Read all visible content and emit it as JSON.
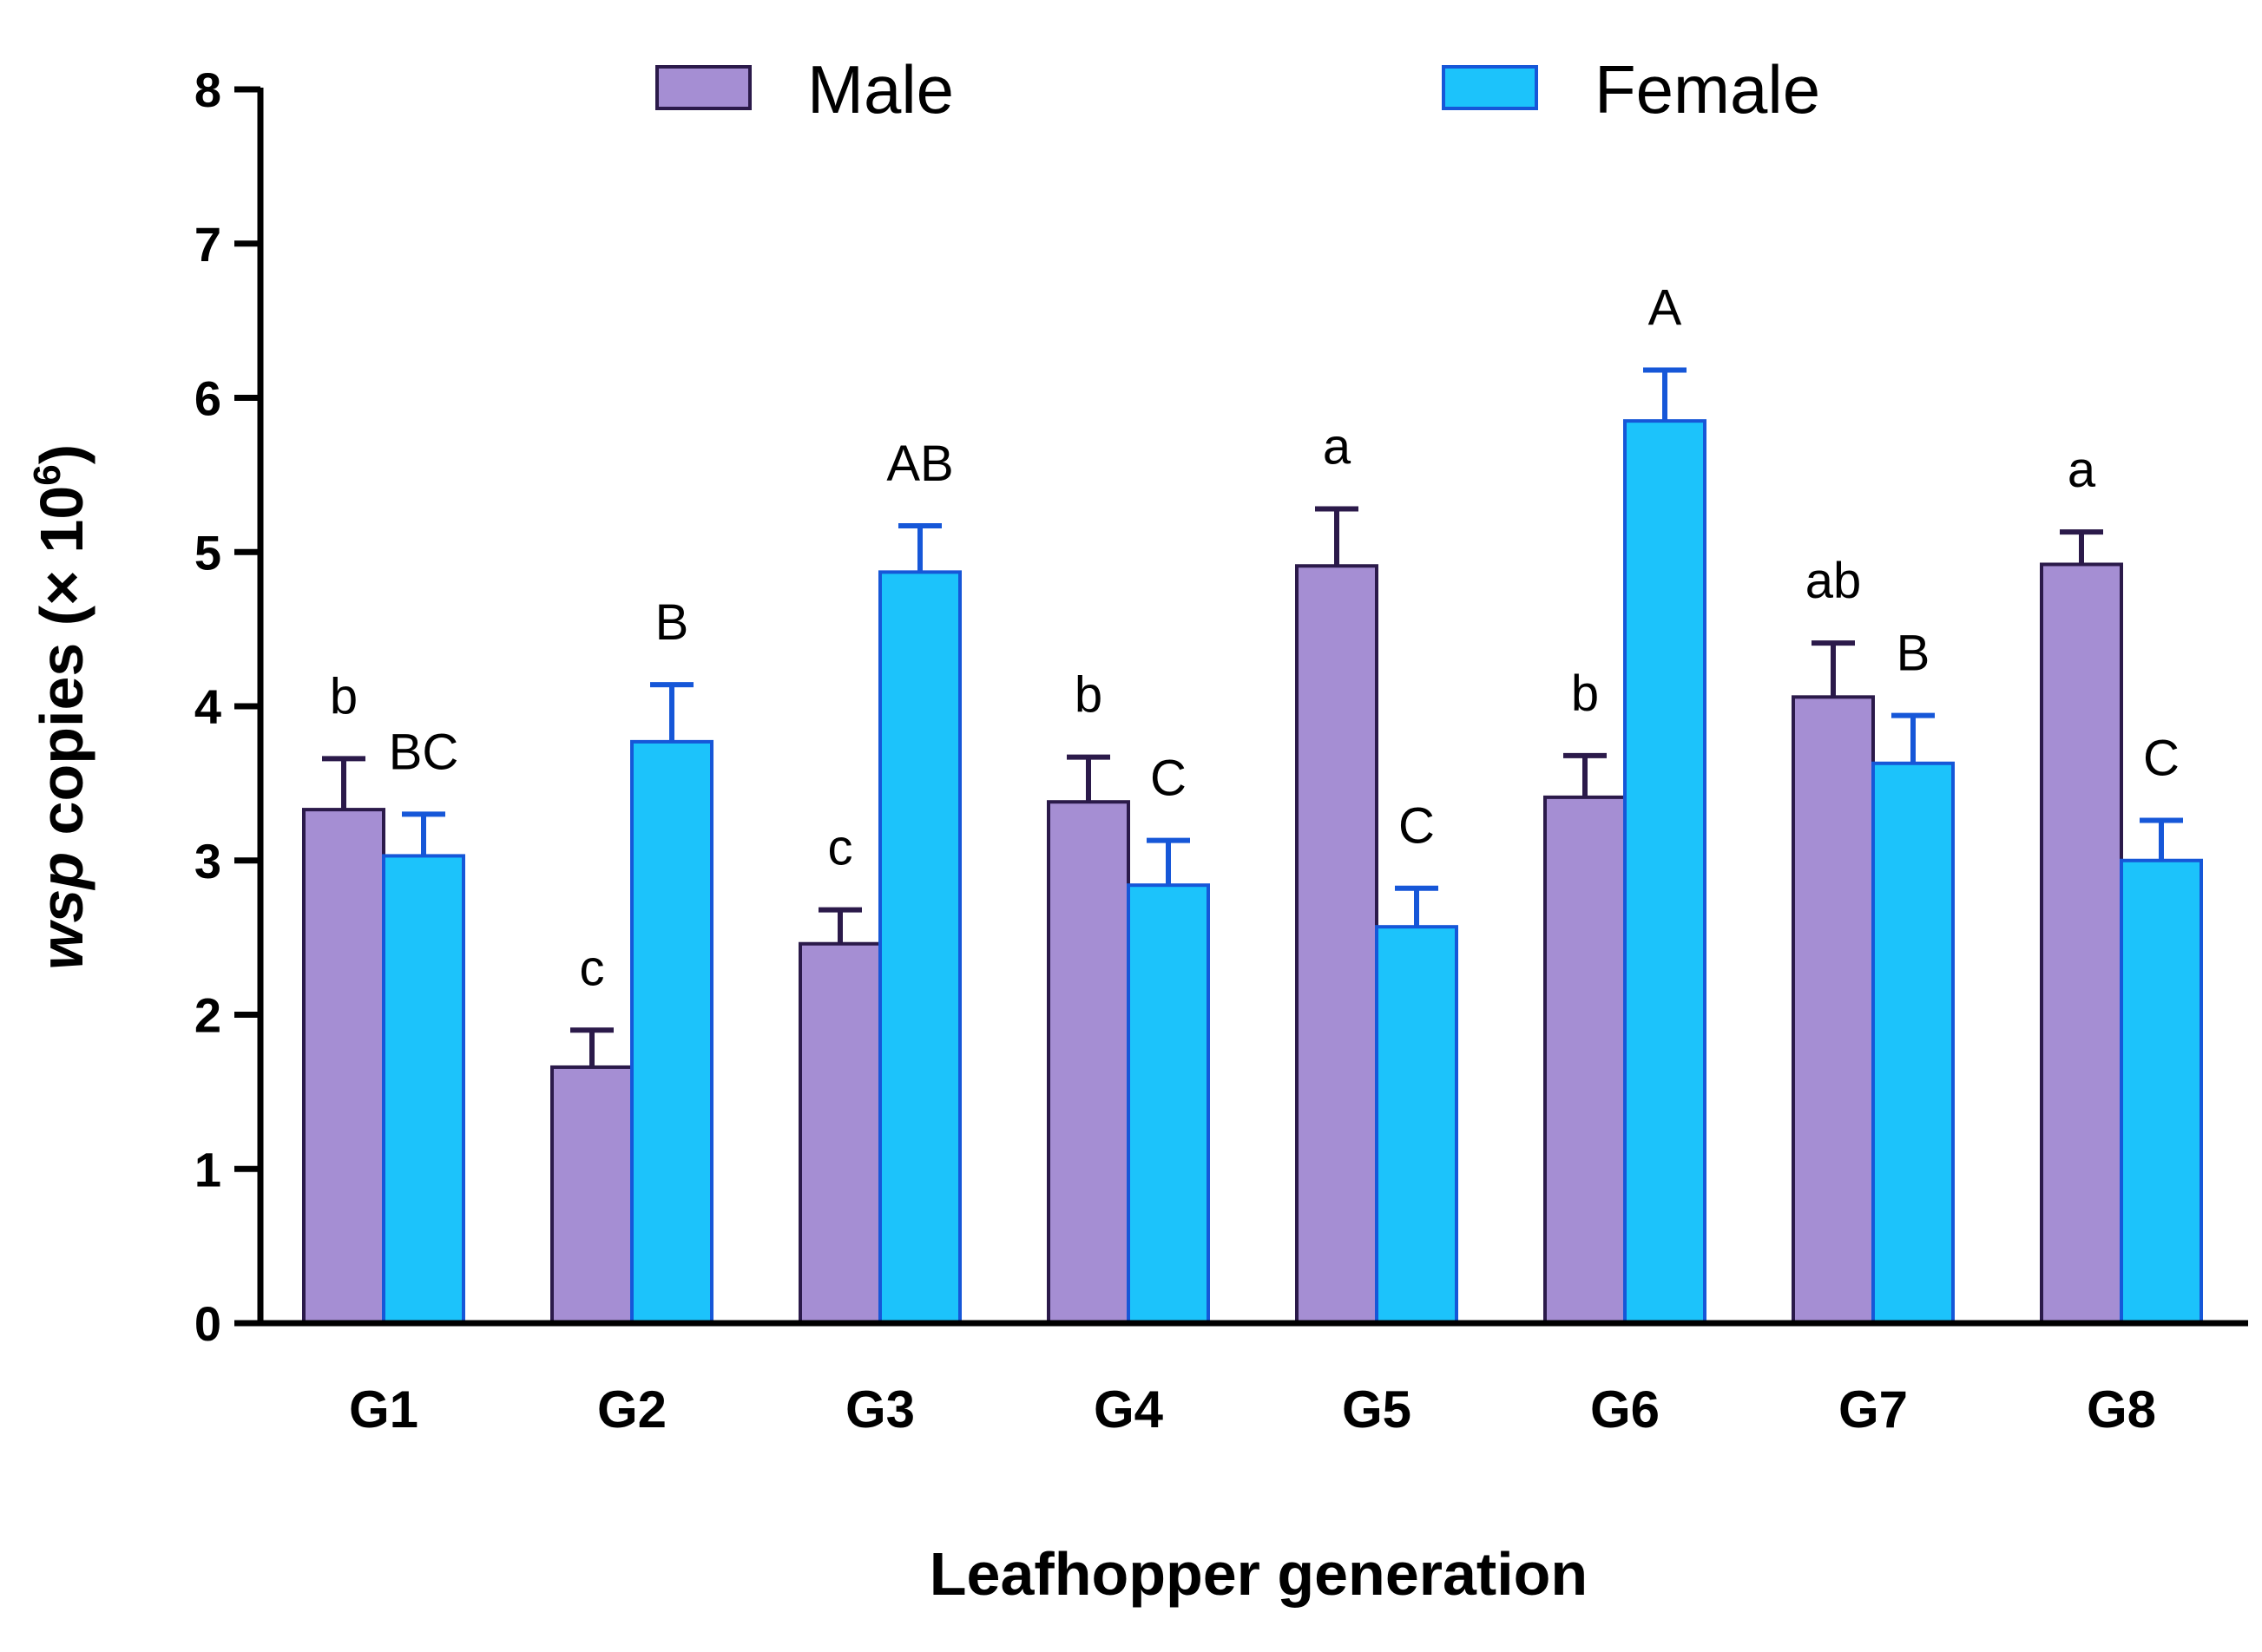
{
  "chart_data": {
    "type": "bar",
    "title": "",
    "xlabel": "Leafhopper generation",
    "ylabel": {
      "italic_part": "wsp",
      "plain_part": " copies (× 10",
      "superscript": "6",
      "close": ")"
    },
    "ylim": [
      0,
      8
    ],
    "yticks": [
      "0",
      "1",
      "2",
      "3",
      "4",
      "5",
      "6",
      "7",
      "8"
    ],
    "categories": [
      "G1",
      "G2",
      "G3",
      "G4",
      "G5",
      "G6",
      "G7",
      "G8"
    ],
    "legend_position": "top",
    "series": [
      {
        "name": "Male",
        "fill": "#a58ed3",
        "stroke": "#2b1a4a",
        "values": [
          3.33,
          1.66,
          2.46,
          3.38,
          4.91,
          3.41,
          4.06,
          4.92
        ],
        "errors": [
          0.33,
          0.24,
          0.22,
          0.29,
          0.37,
          0.27,
          0.35,
          0.21
        ],
        "significance": [
          "b",
          "c",
          "c",
          "b",
          "a",
          "b",
          "ab",
          "a"
        ]
      },
      {
        "name": "Female",
        "fill": "#1cc3fb",
        "stroke": "#1657d8",
        "values": [
          3.03,
          3.77,
          4.87,
          2.84,
          2.57,
          5.85,
          3.63,
          3.0
        ],
        "errors": [
          0.27,
          0.37,
          0.3,
          0.29,
          0.25,
          0.33,
          0.31,
          0.26
        ],
        "significance": [
          "BC",
          "B",
          "AB",
          "C",
          "C",
          "A",
          "B",
          "C"
        ]
      }
    ]
  }
}
